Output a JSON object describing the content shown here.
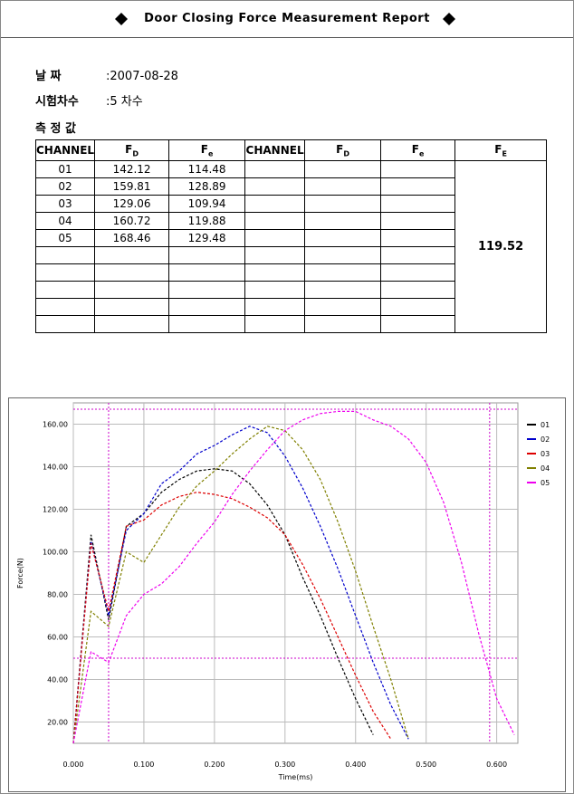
{
  "header": {
    "title": "Door Closing Force Measurement Report"
  },
  "info": {
    "date_label": "날 짜",
    "date": ":2007-08-28",
    "test_label": "시험차수",
    "test": ":5 차수",
    "section": "측 정 값"
  },
  "table": {
    "columns": [
      {
        "text": "CHANNEL"
      },
      {
        "text": "F",
        "sub": "D"
      },
      {
        "text": "F",
        "sub": "e"
      },
      {
        "text": "CHANNEL"
      },
      {
        "text": "F",
        "sub": "D"
      },
      {
        "text": "F",
        "sub": "e"
      },
      {
        "text": "F",
        "sub": "E"
      }
    ],
    "rows": [
      [
        "01",
        "142.12",
        "114.48"
      ],
      [
        "02",
        "159.81",
        "128.89"
      ],
      [
        "03",
        "129.06",
        "109.94"
      ],
      [
        "04",
        "160.72",
        "119.88"
      ],
      [
        "05",
        "168.46",
        "129.48"
      ]
    ],
    "fe": "119.52"
  },
  "chart_data": {
    "type": "line",
    "x_label": "Time(ms)",
    "y_label": "Force(N)",
    "x": [
      0,
      0.025,
      0.05,
      0.075,
      0.1,
      0.125,
      0.15,
      0.175,
      0.2,
      0.225,
      0.25,
      0.275,
      0.3,
      0.325,
      0.35,
      0.375,
      0.4,
      0.425,
      0.45,
      0.475,
      0.5,
      0.525,
      0.55,
      0.575,
      0.6,
      0.625
    ],
    "series": [
      {
        "name": "01",
        "color": "#000000",
        "values": [
          10,
          108,
          68,
          112,
          118,
          128,
          134,
          138,
          139,
          138,
          132,
          122,
          108,
          88,
          70,
          50,
          31,
          14,
          null,
          null,
          null,
          null,
          null,
          null,
          null,
          null
        ]
      },
      {
        "name": "02",
        "color": "#0000cc",
        "values": [
          10,
          105,
          70,
          110,
          118,
          132,
          138,
          146,
          150,
          155,
          159,
          156,
          145,
          130,
          112,
          92,
          70,
          48,
          28,
          12,
          null,
          null,
          null,
          null,
          null,
          null
        ]
      },
      {
        "name": "03",
        "color": "#dd0000",
        "values": [
          10,
          104,
          72,
          112,
          115,
          122,
          126,
          128,
          127,
          125,
          121,
          116,
          108,
          94,
          78,
          60,
          42,
          25,
          12,
          null,
          null,
          null,
          null,
          null,
          null,
          null
        ]
      },
      {
        "name": "04",
        "color": "#808000",
        "values": [
          10,
          72,
          65,
          100,
          95,
          108,
          121,
          131,
          138,
          146,
          153,
          159,
          157,
          148,
          134,
          114,
          91,
          65,
          40,
          12,
          null,
          null,
          null,
          null,
          null,
          null
        ]
      },
      {
        "name": "05",
        "color": "#ee00ee",
        "values": [
          10,
          53,
          48,
          70,
          80,
          85,
          93,
          104,
          114,
          127,
          138,
          148,
          157,
          162,
          165,
          166,
          166,
          162,
          159,
          153,
          142,
          123,
          95,
          61,
          31,
          14
        ]
      }
    ],
    "xlim": [
      0,
      0.63
    ],
    "ylim": [
      10,
      170
    ],
    "xticks": [
      {
        "value": 0,
        "label": "0.000"
      },
      {
        "value": 0.1,
        "label": "0.100"
      },
      {
        "value": 0.2,
        "label": "0.200"
      },
      {
        "value": 0.3,
        "label": "0.300"
      },
      {
        "value": 0.4,
        "label": "0.400"
      },
      {
        "value": 0.5,
        "label": "0.500"
      },
      {
        "value": 0.6,
        "label": "0.600"
      }
    ],
    "yticks": [
      {
        "value": 20,
        "label": "20.00"
      },
      {
        "value": 40,
        "label": "40.00"
      },
      {
        "value": 60,
        "label": "60.00"
      },
      {
        "value": 80,
        "label": "80.00"
      },
      {
        "value": 100,
        "label": "100.00"
      },
      {
        "value": 120,
        "label": "120.00"
      },
      {
        "value": 140,
        "label": "140.00"
      },
      {
        "value": 160,
        "label": "160.00"
      }
    ],
    "vlines": [
      0.05,
      0.59
    ],
    "hlines": [
      50,
      167
    ],
    "marker_color": "#cc00cc",
    "grid": true
  }
}
